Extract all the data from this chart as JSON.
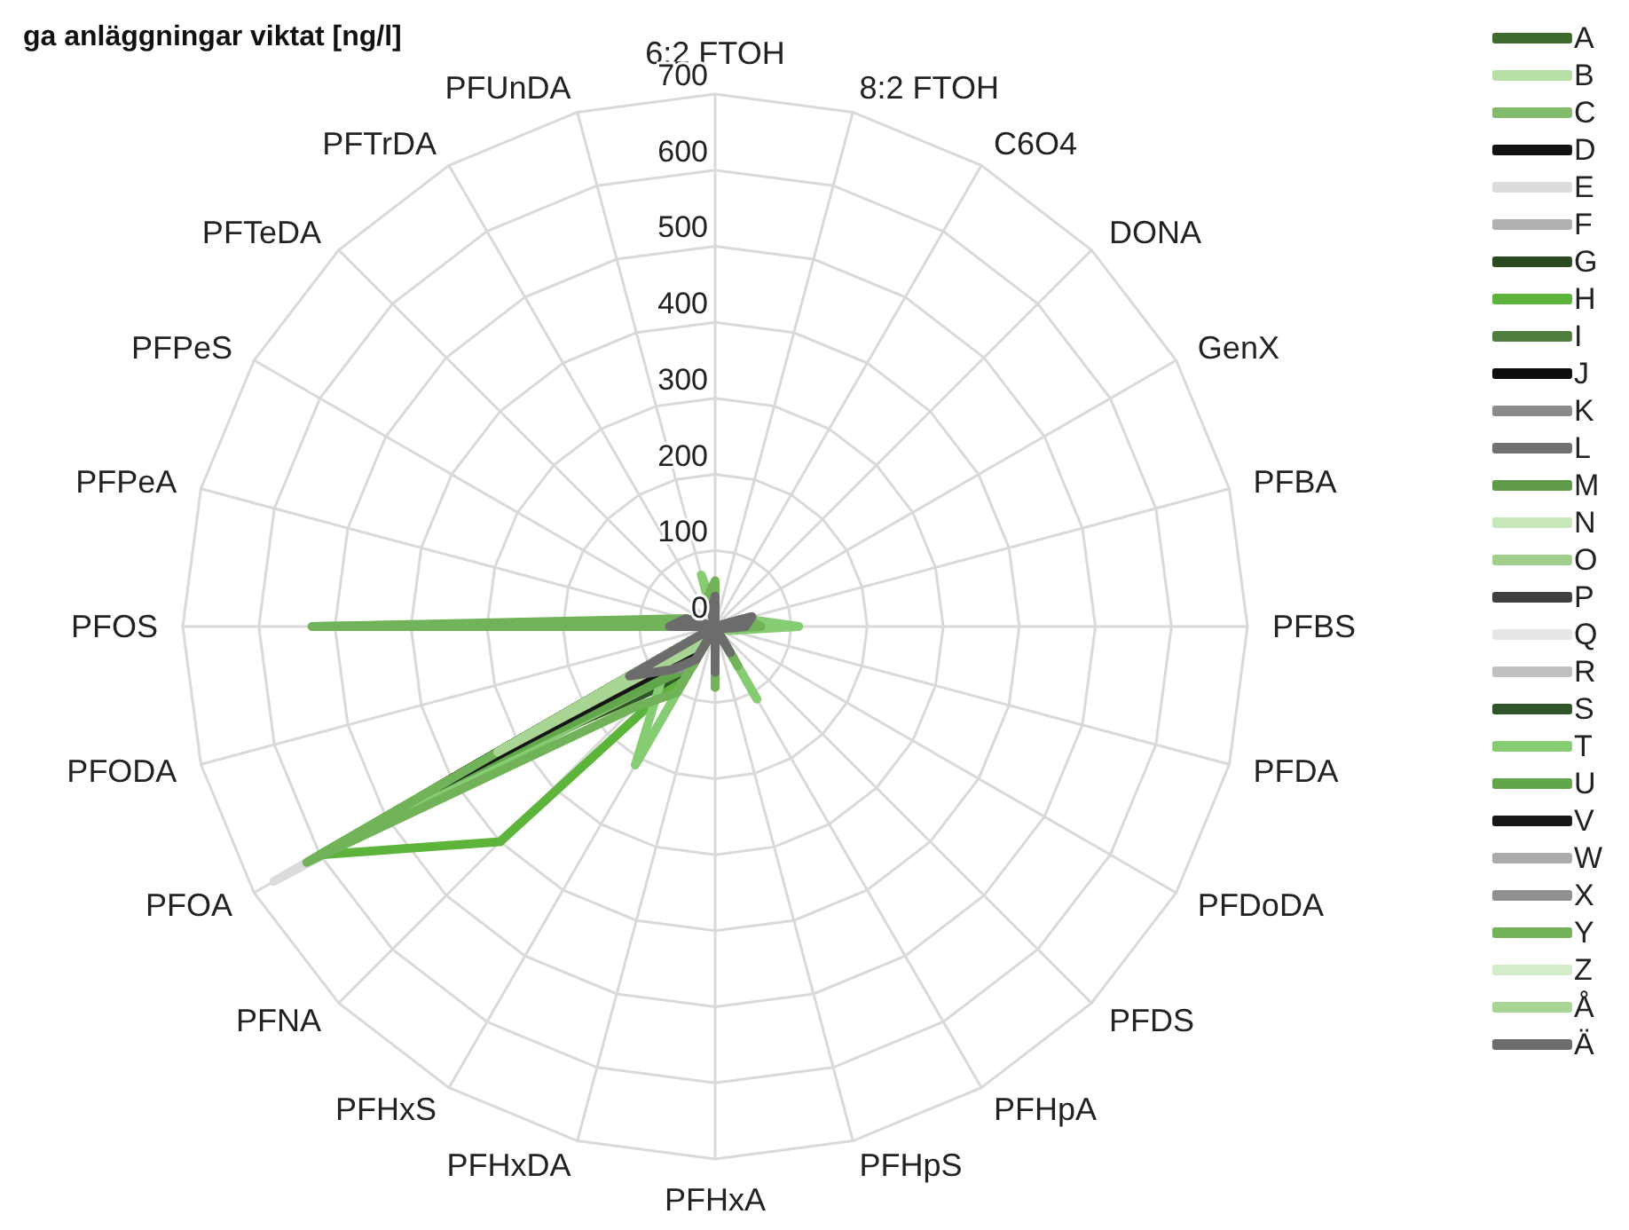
{
  "chart_data": {
    "type": "radar",
    "title": "ga anläggningar viktat [ng/l]",
    "categories": [
      "6:2 FTOH",
      "8:2 FTOH",
      "C6O4",
      "DONA",
      "GenX",
      "PFBA",
      "PFBS",
      "PFDA",
      "PFDoDA",
      "PFDS",
      "PFHpA",
      "PFHpS",
      "PFHxA",
      "PFHxDA",
      "PFHxS",
      "PFNA",
      "PFOA",
      "PFODA",
      "PFOS",
      "PFPeA",
      "PFPeS",
      "PFTeDA",
      "PFTrDA",
      "PFUnDA"
    ],
    "ylim": [
      0,
      700
    ],
    "yticks": [
      0,
      100,
      200,
      300,
      400,
      500,
      600,
      700
    ],
    "grid": true,
    "legend": "right",
    "marker": "none",
    "line_style": "solid",
    "series": [
      {
        "name": "A",
        "color": "#3d6b2e",
        "values": [
          5,
          0,
          0,
          0,
          0,
          20,
          15,
          5,
          0,
          0,
          15,
          0,
          30,
          0,
          10,
          20,
          480,
          0,
          60,
          15,
          0,
          0,
          0,
          0
        ]
      },
      {
        "name": "B",
        "color": "#b7dfa5",
        "values": [
          10,
          0,
          0,
          0,
          0,
          25,
          20,
          5,
          0,
          0,
          20,
          0,
          35,
          0,
          20,
          30,
          350,
          0,
          50,
          20,
          0,
          0,
          0,
          0
        ]
      },
      {
        "name": "C",
        "color": "#82bb6c",
        "values": [
          0,
          0,
          0,
          0,
          0,
          30,
          40,
          10,
          0,
          0,
          40,
          0,
          60,
          0,
          60,
          100,
          620,
          0,
          530,
          30,
          0,
          0,
          0,
          0
        ]
      },
      {
        "name": "D",
        "color": "#111111",
        "values": [
          0,
          0,
          0,
          0,
          0,
          15,
          10,
          0,
          0,
          0,
          15,
          0,
          25,
          0,
          30,
          60,
          450,
          0,
          330,
          15,
          0,
          0,
          0,
          0
        ]
      },
      {
        "name": "E",
        "color": "#dcdcdc",
        "values": [
          0,
          0,
          0,
          0,
          0,
          10,
          10,
          0,
          0,
          0,
          10,
          0,
          20,
          0,
          40,
          80,
          670,
          0,
          30,
          10,
          0,
          0,
          0,
          0
        ]
      },
      {
        "name": "F",
        "color": "#b0b0b0",
        "values": [
          0,
          0,
          0,
          0,
          0,
          10,
          10,
          0,
          0,
          0,
          10,
          0,
          20,
          0,
          20,
          40,
          300,
          0,
          20,
          10,
          0,
          0,
          0,
          0
        ]
      },
      {
        "name": "G",
        "color": "#2b4a22",
        "values": [
          0,
          0,
          0,
          0,
          0,
          20,
          15,
          0,
          0,
          0,
          20,
          0,
          30,
          0,
          40,
          80,
          400,
          0,
          40,
          20,
          0,
          0,
          0,
          0
        ]
      },
      {
        "name": "H",
        "color": "#5cb53a",
        "values": [
          10,
          0,
          0,
          0,
          0,
          40,
          60,
          10,
          0,
          0,
          50,
          0,
          80,
          0,
          60,
          400,
          600,
          0,
          80,
          40,
          0,
          0,
          0,
          0
        ]
      },
      {
        "name": "I",
        "color": "#4f7f3f",
        "values": [
          0,
          0,
          0,
          0,
          0,
          15,
          15,
          0,
          0,
          0,
          15,
          0,
          25,
          0,
          20,
          40,
          380,
          0,
          40,
          15,
          0,
          0,
          0,
          0
        ]
      },
      {
        "name": "J",
        "color": "#0d0d0d",
        "values": [
          0,
          0,
          0,
          0,
          0,
          10,
          10,
          0,
          0,
          0,
          10,
          0,
          20,
          0,
          25,
          50,
          400,
          0,
          60,
          10,
          0,
          0,
          0,
          0
        ]
      },
      {
        "name": "K",
        "color": "#8a8a8a",
        "values": [
          20,
          0,
          0,
          0,
          0,
          40,
          50,
          10,
          0,
          0,
          30,
          0,
          40,
          0,
          20,
          40,
          150,
          0,
          40,
          30,
          0,
          0,
          0,
          10
        ]
      },
      {
        "name": "L",
        "color": "#707070",
        "values": [
          30,
          0,
          0,
          0,
          0,
          40,
          30,
          10,
          0,
          0,
          30,
          0,
          50,
          0,
          30,
          60,
          120,
          0,
          50,
          30,
          0,
          0,
          0,
          20
        ]
      },
      {
        "name": "M",
        "color": "#5e9a48",
        "values": [
          0,
          0,
          0,
          0,
          0,
          20,
          30,
          5,
          0,
          0,
          30,
          0,
          40,
          0,
          50,
          80,
          420,
          0,
          50,
          20,
          0,
          0,
          0,
          0
        ]
      },
      {
        "name": "N",
        "color": "#c8e8bc",
        "values": [
          0,
          0,
          0,
          0,
          0,
          15,
          20,
          0,
          0,
          0,
          20,
          0,
          30,
          0,
          20,
          40,
          200,
          0,
          30,
          15,
          0,
          0,
          0,
          0
        ]
      },
      {
        "name": "O",
        "color": "#9fcf8b",
        "values": [
          0,
          0,
          0,
          0,
          0,
          15,
          20,
          0,
          0,
          0,
          20,
          0,
          30,
          0,
          30,
          50,
          300,
          0,
          30,
          15,
          0,
          0,
          0,
          0
        ]
      },
      {
        "name": "P",
        "color": "#404040",
        "values": [
          0,
          0,
          0,
          0,
          0,
          20,
          20,
          0,
          0,
          0,
          20,
          0,
          30,
          0,
          40,
          70,
          360,
          0,
          40,
          20,
          0,
          0,
          0,
          0
        ]
      },
      {
        "name": "Q",
        "color": "#e6e6e6",
        "values": [
          0,
          0,
          0,
          0,
          0,
          10,
          10,
          0,
          0,
          0,
          10,
          0,
          15,
          0,
          20,
          30,
          250,
          0,
          20,
          10,
          0,
          0,
          0,
          0
        ]
      },
      {
        "name": "R",
        "color": "#c0c0c0",
        "values": [
          0,
          0,
          0,
          0,
          0,
          10,
          10,
          0,
          0,
          0,
          10,
          0,
          15,
          0,
          20,
          30,
          220,
          0,
          20,
          10,
          0,
          0,
          0,
          0
        ]
      },
      {
        "name": "S",
        "color": "#2f5528",
        "values": [
          0,
          0,
          0,
          0,
          0,
          20,
          20,
          0,
          0,
          0,
          20,
          0,
          30,
          0,
          60,
          120,
          390,
          0,
          50,
          20,
          0,
          0,
          0,
          0
        ]
      },
      {
        "name": "T",
        "color": "#86cc72",
        "values": [
          20,
          0,
          0,
          0,
          0,
          40,
          110,
          20,
          0,
          0,
          110,
          0,
          60,
          0,
          210,
          100,
          550,
          0,
          60,
          40,
          0,
          0,
          0,
          70
        ]
      },
      {
        "name": "U",
        "color": "#62a64c",
        "values": [
          0,
          0,
          0,
          0,
          0,
          20,
          30,
          0,
          0,
          0,
          30,
          0,
          40,
          0,
          60,
          100,
          430,
          0,
          50,
          20,
          0,
          0,
          0,
          0
        ]
      },
      {
        "name": "V",
        "color": "#151515",
        "values": [
          0,
          0,
          0,
          0,
          0,
          10,
          10,
          0,
          0,
          0,
          10,
          0,
          20,
          0,
          30,
          60,
          420,
          0,
          330,
          10,
          0,
          0,
          0,
          0
        ]
      },
      {
        "name": "W",
        "color": "#ababab",
        "values": [
          0,
          0,
          0,
          0,
          0,
          10,
          10,
          0,
          0,
          0,
          10,
          0,
          20,
          0,
          20,
          40,
          260,
          0,
          30,
          10,
          0,
          0,
          0,
          0
        ]
      },
      {
        "name": "X",
        "color": "#909090",
        "values": [
          20,
          0,
          0,
          0,
          0,
          50,
          50,
          10,
          0,
          0,
          40,
          0,
          50,
          0,
          60,
          80,
          100,
          0,
          30,
          30,
          0,
          0,
          0,
          10
        ]
      },
      {
        "name": "Y",
        "color": "#72b35a",
        "values": [
          60,
          0,
          0,
          0,
          0,
          40,
          60,
          10,
          0,
          0,
          60,
          0,
          80,
          0,
          100,
          150,
          620,
          0,
          530,
          40,
          0,
          0,
          0,
          40
        ]
      },
      {
        "name": "Z",
        "color": "#d3ecc9",
        "values": [
          0,
          0,
          0,
          0,
          0,
          15,
          20,
          0,
          0,
          0,
          15,
          0,
          20,
          0,
          20,
          30,
          150,
          0,
          20,
          15,
          0,
          0,
          0,
          0
        ]
      },
      {
        "name": "Å",
        "color": "#a8d494",
        "values": [
          0,
          0,
          0,
          0,
          0,
          15,
          20,
          0,
          0,
          0,
          15,
          0,
          25,
          0,
          25,
          40,
          330,
          0,
          30,
          15,
          0,
          0,
          0,
          0
        ]
      },
      {
        "name": "Ä",
        "color": "#6c6c6c",
        "values": [
          40,
          0,
          0,
          0,
          0,
          50,
          40,
          10,
          0,
          0,
          40,
          0,
          60,
          0,
          50,
          80,
          130,
          0,
          60,
          40,
          0,
          0,
          0,
          20
        ]
      }
    ]
  }
}
